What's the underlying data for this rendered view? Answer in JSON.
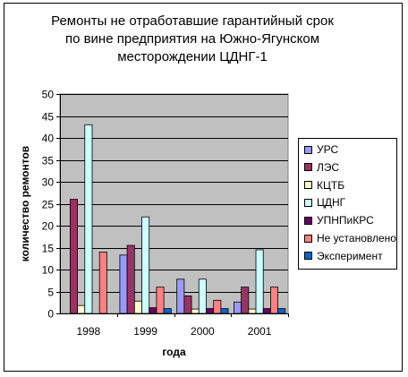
{
  "chart_data": {
    "type": "bar",
    "title_lines": [
      "Ремонты не отработавшие гарантийный срок",
      "по вине предприятия на Южно-Ягунском",
      "месторождении ЦДНГ-1"
    ],
    "xlabel": "года",
    "ylabel": "количество ремонтов",
    "ylim": [
      0,
      50
    ],
    "yticks": [
      0,
      5,
      10,
      15,
      20,
      25,
      30,
      35,
      40,
      45,
      50
    ],
    "grid": true,
    "legend_position": "right",
    "plot_background": "#c0c0c0",
    "categories": [
      "1998",
      "1999",
      "2000",
      "2001"
    ],
    "series": [
      {
        "name": "УРС",
        "color": "#9999ff",
        "values": [
          0,
          13.3,
          7.8,
          2.6
        ]
      },
      {
        "name": "ЛЭС",
        "color": "#993366",
        "values": [
          26,
          15.5,
          4,
          6
        ]
      },
      {
        "name": "КЦТБ",
        "color": "#ffffcc",
        "values": [
          1.8,
          2.8,
          1,
          1
        ]
      },
      {
        "name": "ЦДНГ",
        "color": "#ccffff",
        "values": [
          43,
          22,
          7.8,
          14.5
        ]
      },
      {
        "name": "УПНПиКРС",
        "color": "#660066",
        "values": [
          0,
          1.3,
          1.1,
          1.1
        ]
      },
      {
        "name": "Не установлено",
        "color": "#ff8080",
        "values": [
          14,
          6,
          3,
          6
        ]
      },
      {
        "name": "Эксперимент",
        "color": "#0066cc",
        "values": [
          0,
          1.1,
          1.1,
          1.1
        ]
      }
    ]
  }
}
